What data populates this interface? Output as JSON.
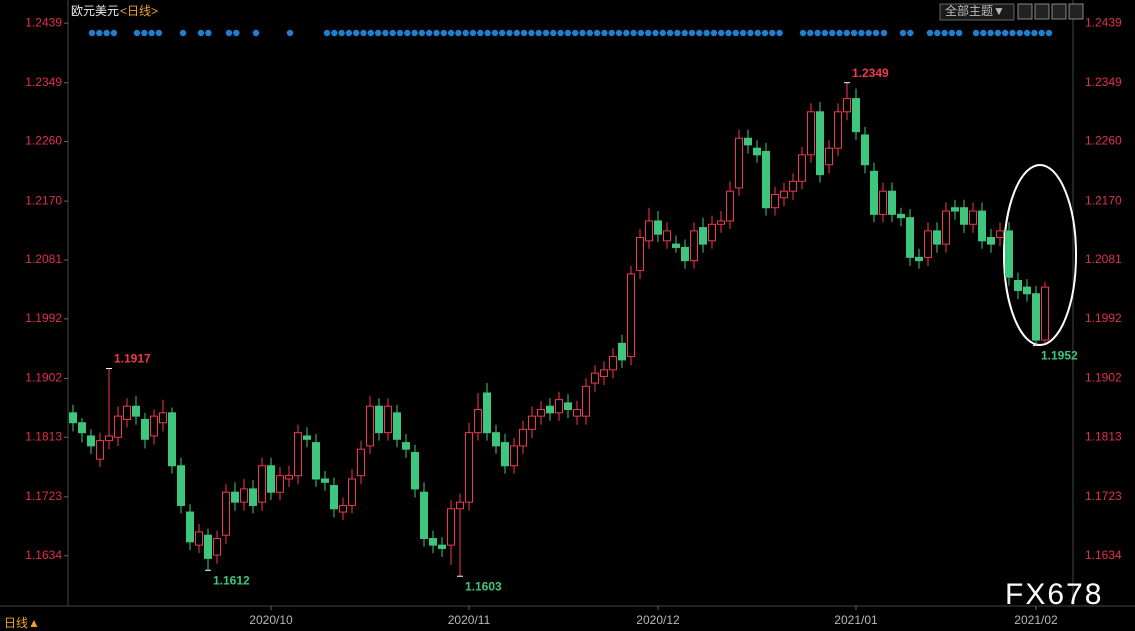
{
  "chart_data": {
    "type": "candlestick",
    "title": "欧元美元",
    "period": "<日线>",
    "theme_button": "全部主题▼",
    "footer_period": "日线▲",
    "watermark": "FX678",
    "categories": [
      null,
      null,
      null,
      null,
      null,
      null,
      null,
      null,
      null,
      null,
      null,
      null,
      null,
      null,
      null,
      null,
      null,
      null,
      null,
      null,
      null,
      null,
      "2020/10",
      null,
      null,
      null,
      null,
      null,
      null,
      null,
      null,
      null,
      null,
      null,
      null,
      null,
      null,
      null,
      null,
      null,
      null,
      null,
      null,
      null,
      "2020/11",
      null,
      null,
      null,
      null,
      null,
      null,
      null,
      null,
      null,
      null,
      null,
      null,
      null,
      null,
      null,
      null,
      null,
      null,
      null,
      null,
      "2020/12",
      null,
      null,
      null,
      null,
      null,
      null,
      null,
      null,
      null,
      null,
      null,
      null,
      null,
      null,
      null,
      null,
      null,
      null,
      null,
      null,
      null,
      "2021/01",
      null,
      null,
      null,
      null,
      null,
      null,
      null,
      null,
      null,
      null,
      null,
      null,
      null,
      null,
      null,
      null,
      null,
      null,
      null,
      "2021/02",
      null
    ],
    "series": [
      {
        "up_color": "#f0384e",
        "down_color": "#3ec67e",
        "open": [
          1.185,
          1.1835,
          1.1815,
          1.178,
          1.1808,
          1.1813,
          1.184,
          1.186,
          1.184,
          1.1815,
          1.1835,
          1.185,
          1.177,
          1.17,
          1.165,
          1.1665,
          1.1635,
          1.1665,
          1.173,
          1.1715,
          1.1735,
          1.1715,
          1.177,
          1.173,
          1.175,
          1.1755,
          1.1815,
          1.1805,
          1.175,
          1.174,
          1.17,
          1.171,
          1.1755,
          1.18,
          1.186,
          1.182,
          1.185,
          1.1805,
          1.179,
          1.173,
          1.166,
          1.165,
          1.165,
          1.1705,
          1.1715,
          1.182,
          1.188,
          1.182,
          1.1805,
          1.177,
          1.18,
          1.1825,
          1.1845,
          1.186,
          1.185,
          1.1865,
          1.1845,
          1.1845,
          1.1895,
          1.1905,
          1.1915,
          1.1955,
          1.1935,
          1.2065,
          1.211,
          1.214,
          1.211,
          1.2105,
          1.21,
          1.208,
          1.213,
          1.211,
          1.2135,
          1.214,
          1.219,
          1.2265,
          1.225,
          1.2245,
          1.216,
          1.2175,
          1.2185,
          1.22,
          1.224,
          1.2305,
          1.2225,
          1.225,
          1.2305,
          1.2325,
          1.227,
          1.2215,
          1.215,
          1.2185,
          1.215,
          1.2145,
          1.2085,
          1.2085,
          1.2125,
          1.2105,
          1.216,
          1.216,
          1.2135,
          1.2155,
          1.2115,
          1.2115,
          1.2125,
          1.205,
          1.204,
          1.203,
          1.196
        ],
        "high": [
          1.1862,
          1.1842,
          1.1825,
          1.182,
          1.1917,
          1.186,
          1.1872,
          1.1875,
          1.185,
          1.1855,
          1.187,
          1.1858,
          1.1782,
          1.1712,
          1.1682,
          1.1675,
          1.1672,
          1.1742,
          1.1745,
          1.175,
          1.1748,
          1.1782,
          1.1782,
          1.1768,
          1.177,
          1.1832,
          1.1828,
          1.1818,
          1.1762,
          1.1752,
          1.1722,
          1.1765,
          1.1808,
          1.1875,
          1.1872,
          1.1872,
          1.1862,
          1.1818,
          1.1802,
          1.1745,
          1.1672,
          1.1662,
          1.1718,
          1.1728,
          1.1835,
          1.188,
          1.1895,
          1.1832,
          1.1818,
          1.1812,
          1.1838,
          1.186,
          1.1868,
          1.1872,
          1.1882,
          1.1878,
          1.1868,
          1.1902,
          1.1922,
          1.1928,
          1.1948,
          1.1968,
          1.2072,
          1.2128,
          1.216,
          1.2155,
          1.2138,
          1.2118,
          1.2112,
          1.2138,
          1.2145,
          1.2148,
          1.2155,
          1.22,
          1.2278,
          1.2278,
          1.2262,
          1.2258,
          1.2192,
          1.2198,
          1.2212,
          1.2252,
          1.2318,
          1.232,
          1.2262,
          1.2318,
          1.2349,
          1.234,
          1.2282,
          1.2228,
          1.2198,
          1.2198,
          1.216,
          1.2158,
          1.2098,
          1.2138,
          1.2138,
          1.2168,
          1.2172,
          1.2172,
          1.2168,
          1.2168,
          1.2128,
          1.2138,
          1.2138,
          1.2062,
          1.2052,
          1.2042,
          1.2048
        ],
        "low": [
          1.1822,
          1.1805,
          1.1788,
          1.1768,
          1.1795,
          1.18,
          1.1828,
          1.1832,
          1.1796,
          1.1802,
          1.1822,
          1.1758,
          1.1698,
          1.1642,
          1.1638,
          1.1612,
          1.1622,
          1.1652,
          1.1702,
          1.1702,
          1.1698,
          1.1702,
          1.1718,
          1.1718,
          1.1738,
          1.1742,
          1.1798,
          1.1738,
          1.1732,
          1.1692,
          1.1688,
          1.1698,
          1.1742,
          1.1788,
          1.1808,
          1.1808,
          1.1798,
          1.1782,
          1.1722,
          1.1648,
          1.1638,
          1.1632,
          1.162,
          1.1603,
          1.1702,
          1.1808,
          1.1808,
          1.1788,
          1.1758,
          1.1758,
          1.1788,
          1.1812,
          1.1832,
          1.1838,
          1.1838,
          1.1842,
          1.1832,
          1.1832,
          1.1882,
          1.1892,
          1.1902,
          1.1918,
          1.1922,
          1.2052,
          1.2098,
          1.2108,
          1.2098,
          1.2092,
          1.2068,
          1.2068,
          1.2092,
          1.2098,
          1.2122,
          1.2128,
          1.2178,
          1.2242,
          1.2228,
          1.2148,
          1.2148,
          1.2162,
          1.2172,
          1.2188,
          1.2228,
          1.2198,
          1.2212,
          1.2238,
          1.2292,
          1.2262,
          1.2212,
          1.2138,
          1.2138,
          1.2138,
          1.2132,
          1.2072,
          1.2068,
          1.2072,
          1.2092,
          1.2092,
          1.2142,
          1.2122,
          1.2122,
          1.2098,
          1.2092,
          1.2102,
          1.2042,
          1.2022,
          1.2018,
          1.1952,
          1.1955
        ],
        "close": [
          1.1835,
          1.182,
          1.18,
          1.1808,
          1.1815,
          1.1845,
          1.186,
          1.1845,
          1.181,
          1.1845,
          1.185,
          1.177,
          1.171,
          1.1655,
          1.167,
          1.163,
          1.166,
          1.173,
          1.1715,
          1.1735,
          1.171,
          1.177,
          1.173,
          1.1755,
          1.1755,
          1.182,
          1.181,
          1.175,
          1.1745,
          1.1705,
          1.171,
          1.175,
          1.1795,
          1.186,
          1.182,
          1.186,
          1.181,
          1.1795,
          1.1735,
          1.166,
          1.165,
          1.1645,
          1.1705,
          1.1715,
          1.182,
          1.1855,
          1.182,
          1.18,
          1.177,
          1.18,
          1.1825,
          1.1845,
          1.1855,
          1.185,
          1.187,
          1.1855,
          1.1855,
          1.189,
          1.191,
          1.1915,
          1.1935,
          1.193,
          1.206,
          1.2115,
          1.214,
          1.212,
          1.2125,
          1.21,
          1.208,
          1.2125,
          1.2105,
          1.2135,
          1.214,
          1.2185,
          1.2265,
          1.2255,
          1.224,
          1.216,
          1.218,
          1.2185,
          1.22,
          1.224,
          1.2305,
          1.221,
          1.225,
          1.2305,
          1.2325,
          1.2275,
          1.2225,
          1.215,
          1.2185,
          1.215,
          1.2145,
          1.2085,
          1.208,
          1.2125,
          1.2105,
          1.2155,
          1.2155,
          1.2135,
          1.2155,
          1.211,
          1.2105,
          1.2125,
          1.2055,
          1.2035,
          1.203,
          1.196,
          1.204
        ]
      }
    ],
    "annotations": [
      "1.1917",
      "1.1612",
      "1.1603",
      "1.2349",
      "1.1952"
    ],
    "ylim": [
      1.1558,
      1.2474
    ],
    "yticks": [
      1.1634,
      1.1723,
      1.1813,
      1.1902,
      1.1992,
      1.2081,
      {
        "value": 1.217,
        "label": "1.2170"
      },
      {
        "value": 1.226,
        "label": "1.2260"
      },
      1.2349,
      1.2439
    ]
  }
}
